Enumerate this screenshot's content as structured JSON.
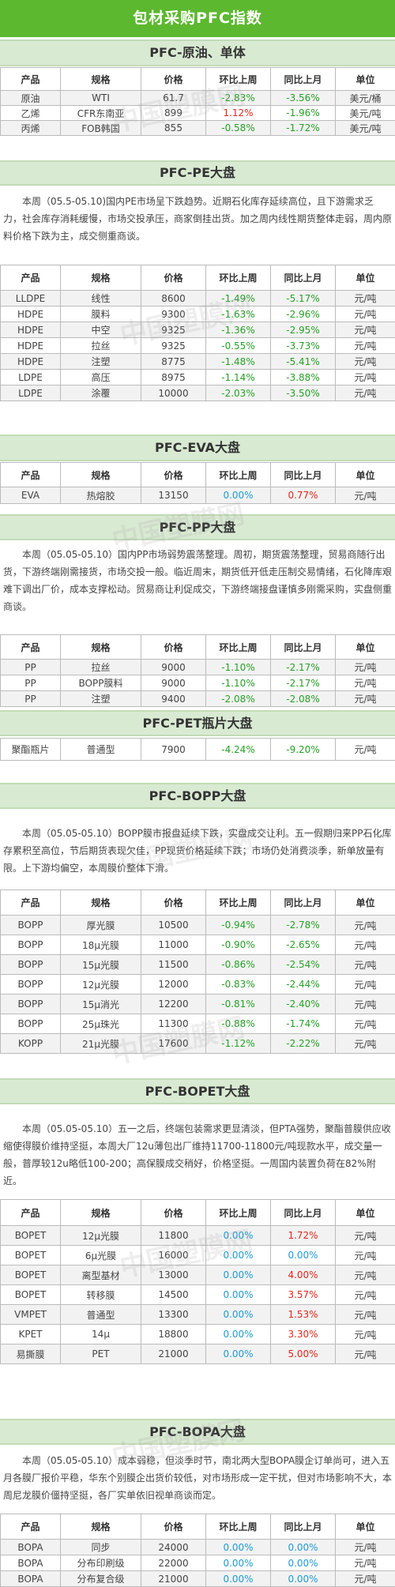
{
  "title": "包材采购PFC指数",
  "watermark": "中国塑膜网",
  "sections": [
    {
      "id": "oil",
      "title": "PFC-原油、单体",
      "headers": [
        "产品",
        "规格",
        "价格",
        "环比上周",
        "同比上月",
        "单位"
      ],
      "rows": [
        [
          "原油",
          "WTI",
          "61.7",
          "-2.83%",
          "-3.56%",
          "美元/桶"
        ],
        [
          "乙烯",
          "CFR东南亚",
          "899",
          "1.12%",
          "-1.96%",
          "美元/吨"
        ],
        [
          "丙烯",
          "FOB韩国",
          "855",
          "-0.58%",
          "-1.72%",
          "美元/吨"
        ]
      ]
    },
    {
      "id": "pe",
      "title": "PFC-PE大盘",
      "paragraph": "本周（05.5-05.10)国内PE市场呈下跌趋势。近期石化库存延续高位，且下游需求乏力，社会库存消耗缓慢，市场交投承压，商家倒挂出货。加之周内线性期货整体走弱，周内原料价格下跌为主，成交侧重商谈。",
      "headers": [
        "产品",
        "规格",
        "价格",
        "环比上周",
        "同比上月",
        "单位"
      ],
      "rows": [
        [
          "LLDPE",
          "线性",
          "8600",
          "-1.49%",
          "-5.17%",
          "元/吨"
        ],
        [
          "HDPE",
          "膜料",
          "9300",
          "-1.63%",
          "-2.96%",
          "元/吨"
        ],
        [
          "HDPE",
          "中空",
          "9325",
          "-1.36%",
          "-2.95%",
          "元/吨"
        ],
        [
          "HDPE",
          "拉丝",
          "9325",
          "-0.55%",
          "-3.73%",
          "元/吨"
        ],
        [
          "HDPE",
          "注塑",
          "8775",
          "-1.48%",
          "-5.41%",
          "元/吨"
        ],
        [
          "LDPE",
          "高压",
          "8975",
          "-1.14%",
          "-3.88%",
          "元/吨"
        ],
        [
          "LDPE",
          "涂覆",
          "10000",
          "-2.03%",
          "-3.50%",
          "元/吨"
        ]
      ]
    },
    {
      "id": "eva",
      "title": "PFC-EVA大盘",
      "headers": [
        "产品",
        "规格",
        "价格",
        "环比上周",
        "同比上月",
        "单位"
      ],
      "rows": [
        [
          "EVA",
          "热熔胶",
          "13150",
          "0.00%",
          "0.77%",
          "元/吨"
        ]
      ]
    },
    {
      "id": "pp",
      "title": "PFC-PP大盘",
      "paragraph": "本周（05.05-05.10）国内PP市场弱势震荡整理。周初，期货震荡整理，贸易商随行出货，下游终端刚需接货，市场交投一般。临近周末，期货低开低走压制交易情绪，石化降库艰难下调出厂价，成本支撑松动。贸易商让利促成交，下游终端接盘谨慎多刚需采购，实盘侧重商谈。",
      "headers": [
        "产品",
        "规格",
        "价格",
        "环比上周",
        "同比上月",
        "单位"
      ],
      "rows": [
        [
          "PP",
          "拉丝",
          "9000",
          "-1.10%",
          "-2.17%",
          "元/吨"
        ],
        [
          "PP",
          "BOPP膜料",
          "9000",
          "-1.10%",
          "-2.17%",
          "元/吨"
        ],
        [
          "PP",
          "注塑",
          "9400",
          "-2.08%",
          "-2.08%",
          "元/吨"
        ]
      ]
    },
    {
      "id": "pet",
      "title": "PFC-PET瓶片大盘",
      "headers": [
        "聚酯瓶片",
        "普通型",
        "7900",
        "-4.24%",
        "-9.20%",
        "元/吨"
      ],
      "rows": []
    },
    {
      "id": "bopp",
      "title": "PFC-BOPP大盘",
      "paragraph": "本周（05.05-05.10）BOPP膜市报盘延续下跌，实盘成交让利。五一假期归来PP石化库存累积至高位，节后期货表现欠佳，PP现货价格延续下跌；市场仍处消费淡季，新单放量有限。上下游均偏空，本周膜价整体下滑。",
      "headers": [
        "产品",
        "规格",
        "价格",
        "环比上周",
        "同比上月",
        "单位"
      ],
      "rows": [
        [
          "BOPP",
          "厚光膜",
          "10500",
          "-0.94%",
          "-2.78%",
          "元/吨"
        ],
        [
          "BOPP",
          "18μ光膜",
          "11000",
          "-0.90%",
          "-2.65%",
          "元/吨"
        ],
        [
          "BOPP",
          "15μ光膜",
          "11500",
          "-0.86%",
          "-2.54%",
          "元/吨"
        ],
        [
          "BOPP",
          "12μ光膜",
          "12000",
          "-0.83%",
          "-2.44%",
          "元/吨"
        ],
        [
          "BOPP",
          "15μ消光",
          "12200",
          "-0.81%",
          "-2.40%",
          "元/吨"
        ],
        [
          "BOPP",
          "25μ珠光",
          "11300",
          "-0.88%",
          "-1.74%",
          "元/吨"
        ],
        [
          "KOPP",
          "21μ光膜",
          "17600",
          "-1.12%",
          "-2.22%",
          "元/吨"
        ]
      ]
    },
    {
      "id": "bopet",
      "title": "PFC-BOPET大盘",
      "paragraph": "本周（05.05-05.10）五一之后，终端包装需求更显清淡，但PTA强势，聚酯普膜供应收缩使得膜价维持坚挺，本周大厂12u薄包出厂维持11700-11800元/吨现款水平，成交量一般，普厚较12u略低100-200；高保膜成交稍好，价格坚挺。一周国内装置负荷在82%附近。",
      "headers": [
        "产品",
        "规格",
        "价格",
        "环比上周",
        "同比上月",
        "单位"
      ],
      "rows": [
        [
          "BOPET",
          "12μ光膜",
          "11800",
          "0.00%",
          "1.72%",
          "元/吨"
        ],
        [
          "BOPET",
          "6μ光膜",
          "16000",
          "0.00%",
          "0.00%",
          "元/吨"
        ],
        [
          "BOPET",
          "离型基材",
          "13000",
          "0.00%",
          "4.00%",
          "元/吨"
        ],
        [
          "BOPET",
          "转移膜",
          "14500",
          "0.00%",
          "3.57%",
          "元/吨"
        ],
        [
          "VMPET",
          "普通型",
          "13300",
          "0.00%",
          "1.53%",
          "元/吨"
        ],
        [
          "KPET",
          "14μ",
          "18800",
          "0.00%",
          "3.30%",
          "元/吨"
        ],
        [
          "易撕膜",
          "PET",
          "21000",
          "0.00%",
          "5.00%",
          "元/吨"
        ]
      ]
    },
    {
      "id": "bopa",
      "title": "PFC-BOPA大盘",
      "paragraph": "本周（05.05-05.10）成本弱稳，但淡季时节，南北两大型BOPA膜企订单尚可，进入五月各膜厂报价平稳，华东个别膜企出货价较低，对市场形成一定干扰，但对市场影响不大，本周尼龙膜价僵持坚挺，各厂实单依旧视单商谈而定。",
      "headers": [
        "产品",
        "规格",
        "价格",
        "环比上周",
        "同比上月",
        "单位"
      ],
      "rows": [
        [
          "BOPA",
          "同步",
          "24000",
          "0.00%",
          "0.00%",
          "元/吨"
        ],
        [
          "BOPA",
          "分布印刷级",
          "22000",
          "0.00%",
          "0.00%",
          "元/吨"
        ],
        [
          "BOPA",
          "分布复合级",
          "21000",
          "0.00%",
          "0.00%",
          "元/吨"
        ]
      ]
    }
  ],
  "colors": {
    "title_bar": "#5cb82e",
    "section_header": "#d9ead3",
    "negative": "#27a127",
    "positive": "#e0261c",
    "zero": "#1f9bd1"
  }
}
